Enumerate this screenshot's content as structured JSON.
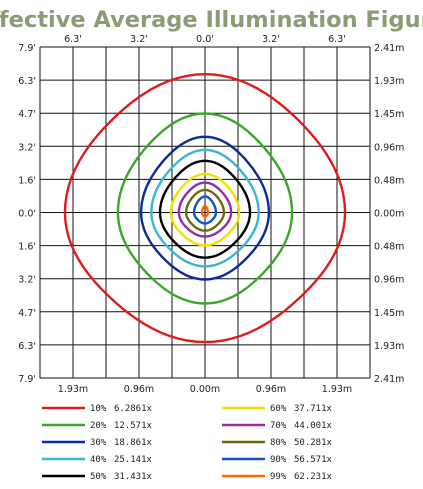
{
  "chart_data": {
    "type": "line",
    "title": "Effective Average Illumination Figure",
    "top_ticks": [
      "6.3'",
      "3.2'",
      "0.0'",
      "3.2'",
      "6.3'"
    ],
    "bottom_ticks": [
      "1.93m",
      "0.96m",
      "0.00m",
      "0.96m",
      "1.93m"
    ],
    "left_ticks": [
      "7.9'",
      "6.3'",
      "4.7'",
      "3.2'",
      "1.6'",
      "0.0'",
      "1.6'",
      "3.2'",
      "4.7'",
      "6.3'",
      "7.9'"
    ],
    "right_ticks": [
      "2.41m",
      "1.93m",
      "1.45m",
      "0.96m",
      "0.48m",
      "0.00m",
      "0.48m",
      "0.96m",
      "1.45m",
      "1.93m",
      "2.41m"
    ],
    "x_range_m": [
      -2.41,
      2.41
    ],
    "y_range_m": [
      -2.41,
      2.41
    ],
    "grid": true,
    "legend_position": "bottom",
    "series": [
      {
        "name": "10%",
        "lux": "6.2861x",
        "color": "#e11a1a",
        "rx": 1.93,
        "ry_top": 1.9,
        "ry_bottom": 1.78
      },
      {
        "name": "20%",
        "lux": "12.571x",
        "color": "#3aa62a",
        "rx": 1.2,
        "ry_top": 1.36,
        "ry_bottom": 1.25
      },
      {
        "name": "30%",
        "lux": "18.861x",
        "color": "#0c2a9a",
        "rx": 0.88,
        "ry_top": 1.04,
        "ry_bottom": 0.92
      },
      {
        "name": "40%",
        "lux": "25.141x",
        "color": "#38b6d6",
        "rx": 0.74,
        "ry_top": 0.86,
        "ry_bottom": 0.74
      },
      {
        "name": "50%",
        "lux": "31.431x",
        "color": "#000000",
        "rx": 0.62,
        "ry_top": 0.71,
        "ry_bottom": 0.62
      },
      {
        "name": "60%",
        "lux": "37.711x",
        "color": "#f0e000",
        "rx": 0.47,
        "ry_top": 0.53,
        "ry_bottom": 0.45
      },
      {
        "name": "70%",
        "lux": "44.001x",
        "color": "#9a2aa8",
        "rx": 0.36,
        "ry_top": 0.41,
        "ry_bottom": 0.33
      },
      {
        "name": "80%",
        "lux": "50.281x",
        "color": "#6e6a0a",
        "rx": 0.26,
        "ry_top": 0.31,
        "ry_bottom": 0.25
      },
      {
        "name": "90%",
        "lux": "56.571x",
        "color": "#1554c8",
        "rx": 0.15,
        "ry_top": 0.22,
        "ry_bottom": 0.15
      },
      {
        "name": "99%",
        "lux": "62.231x",
        "color": "#ff6a00",
        "rx": 0.04,
        "ry_top": 0.09,
        "ry_bottom": 0.06
      }
    ]
  }
}
